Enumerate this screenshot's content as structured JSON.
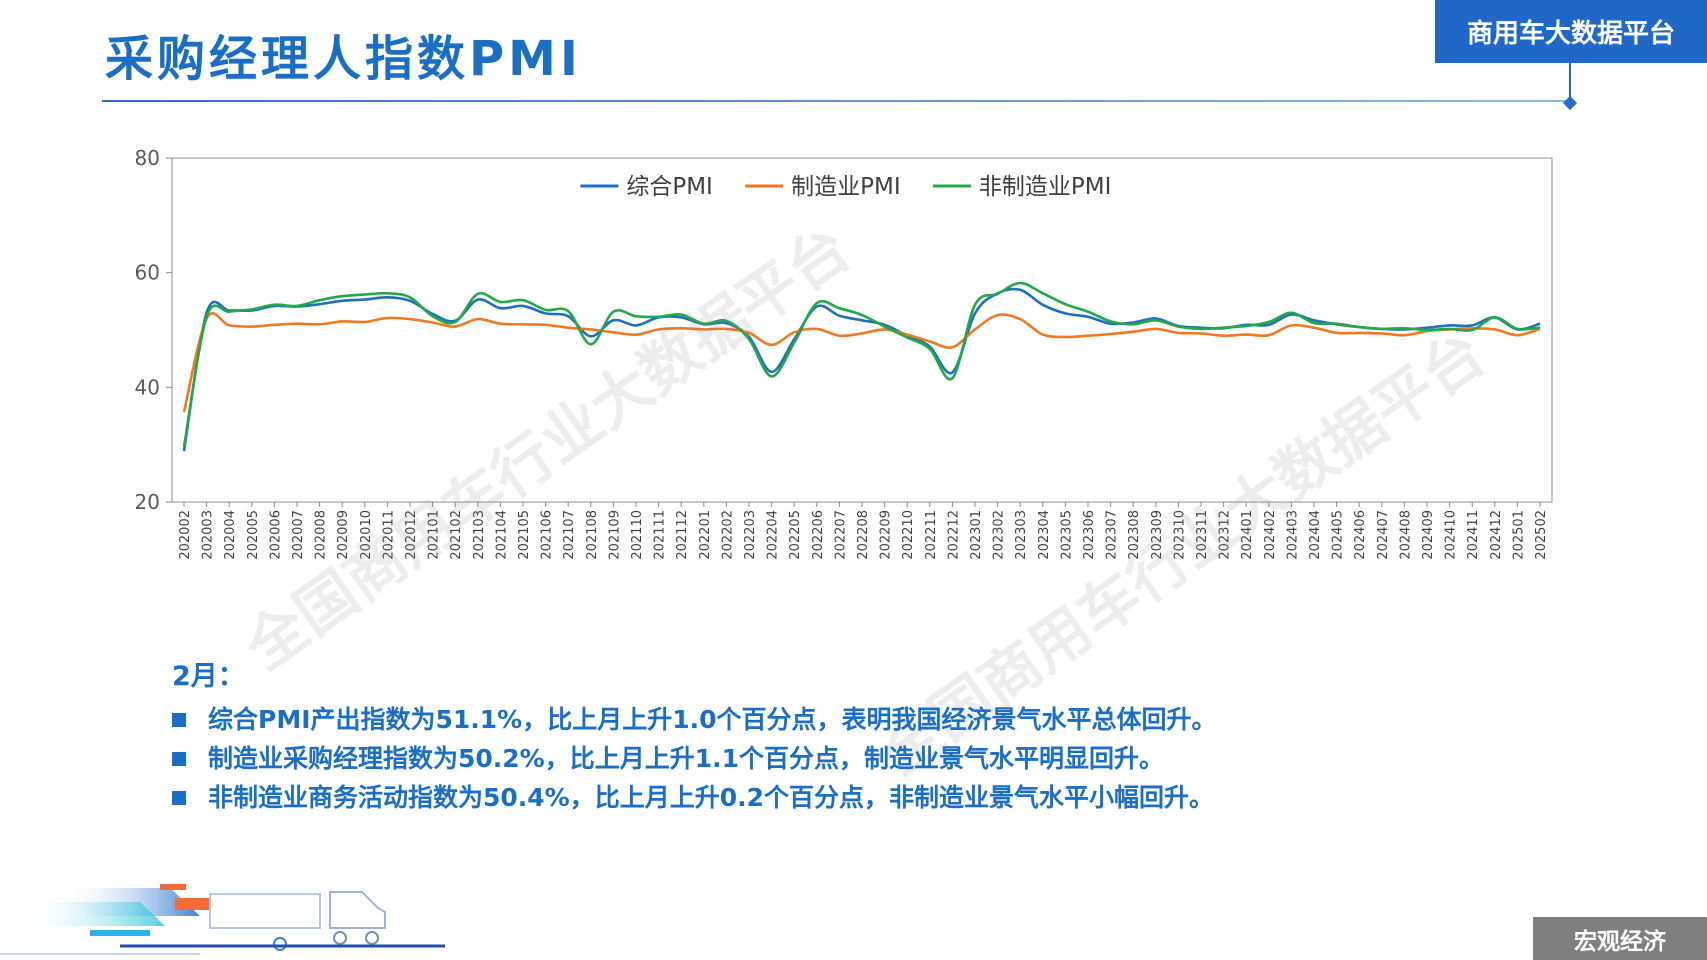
{
  "header": {
    "title": "采购经理人指数PMI",
    "badge": "商用车大数据平台"
  },
  "watermark": "全国商用车行业大数据平台",
  "chart_data": {
    "type": "line",
    "title": "",
    "xlabel": "",
    "ylabel": "",
    "ylim": [
      20,
      80
    ],
    "yticks": [
      20,
      40,
      60,
      80
    ],
    "grid": false,
    "legend_position": "top-center",
    "categories": [
      "202002",
      "202003",
      "202004",
      "202005",
      "202006",
      "202007",
      "202008",
      "202009",
      "202010",
      "202011",
      "202012",
      "202101",
      "202102",
      "202103",
      "202104",
      "202105",
      "202106",
      "202107",
      "202108",
      "202109",
      "202110",
      "202111",
      "202112",
      "202201",
      "202202",
      "202203",
      "202204",
      "202205",
      "202206",
      "202207",
      "202208",
      "202209",
      "202210",
      "202211",
      "202212",
      "202301",
      "202302",
      "202303",
      "202304",
      "202305",
      "202306",
      "202307",
      "202308",
      "202309",
      "202310",
      "202311",
      "202312",
      "202401",
      "202402",
      "202403",
      "202404",
      "202405",
      "202406",
      "202407",
      "202408",
      "202409",
      "202410",
      "202411",
      "202412",
      "202501",
      "202502"
    ],
    "series": [
      {
        "name": "综合PMI",
        "color": "#1f6fbf",
        "values": [
          28.9,
          53.0,
          53.4,
          53.4,
          54.2,
          54.1,
          54.5,
          55.1,
          55.3,
          55.7,
          55.1,
          52.8,
          51.6,
          55.3,
          53.8,
          54.2,
          52.9,
          52.4,
          48.9,
          51.7,
          50.8,
          52.2,
          52.2,
          51.0,
          51.2,
          48.8,
          42.7,
          48.4,
          54.1,
          52.5,
          51.7,
          50.9,
          49.0,
          47.1,
          42.6,
          52.9,
          56.4,
          57.0,
          54.4,
          52.9,
          52.3,
          51.1,
          51.3,
          52.0,
          50.7,
          50.4,
          50.3,
          50.9,
          50.9,
          52.7,
          51.7,
          51.0,
          50.5,
          50.2,
          50.1,
          50.4,
          50.8,
          50.8,
          52.2,
          50.1,
          51.1
        ]
      },
      {
        "name": "制造业PMI",
        "color": "#f07820",
        "values": [
          35.7,
          52.0,
          50.8,
          50.6,
          50.9,
          51.1,
          51.0,
          51.5,
          51.4,
          52.1,
          51.9,
          51.3,
          50.6,
          51.9,
          51.1,
          51.0,
          50.9,
          50.4,
          50.1,
          49.6,
          49.2,
          50.1,
          50.3,
          50.1,
          50.2,
          49.5,
          47.4,
          49.6,
          50.2,
          49.0,
          49.4,
          50.1,
          49.2,
          48.0,
          47.0,
          50.1,
          52.6,
          51.9,
          49.2,
          48.8,
          49.0,
          49.3,
          49.7,
          50.2,
          49.5,
          49.4,
          49.0,
          49.2,
          49.1,
          50.8,
          50.4,
          49.5,
          49.5,
          49.4,
          49.1,
          49.8,
          50.1,
          50.3,
          50.1,
          49.1,
          50.2
        ]
      },
      {
        "name": "非制造业PMI",
        "color": "#21a84a",
        "values": [
          29.6,
          52.3,
          53.2,
          53.6,
          54.4,
          54.2,
          55.2,
          55.9,
          56.2,
          56.4,
          55.7,
          52.4,
          51.4,
          56.3,
          54.9,
          55.2,
          53.5,
          53.3,
          47.5,
          53.2,
          52.4,
          52.3,
          52.7,
          51.1,
          51.6,
          48.4,
          41.9,
          47.8,
          54.7,
          53.8,
          52.6,
          50.6,
          48.7,
          46.7,
          41.6,
          54.4,
          56.3,
          58.2,
          56.4,
          54.5,
          53.2,
          51.5,
          51.0,
          51.7,
          50.6,
          50.2,
          50.4,
          50.7,
          51.4,
          53.0,
          51.2,
          51.1,
          50.5,
          50.2,
          50.3,
          50.0,
          50.2,
          50.0,
          52.2,
          50.2,
          50.4
        ]
      }
    ]
  },
  "notes": {
    "heading": "2月：",
    "items": [
      "综合PMI产出指数为51.1%，比上月上升1.0个百分点，表明我国经济景气水平总体回升。",
      "制造业采购经理指数为50.2%，比上月上升1.1个百分点，制造业景气水平明显回升。",
      "非制造业商务活动指数为50.4%，比上月上升0.2个百分点，非制造业景气水平小幅回升。"
    ]
  },
  "footer": {
    "section": "宏观经济"
  }
}
